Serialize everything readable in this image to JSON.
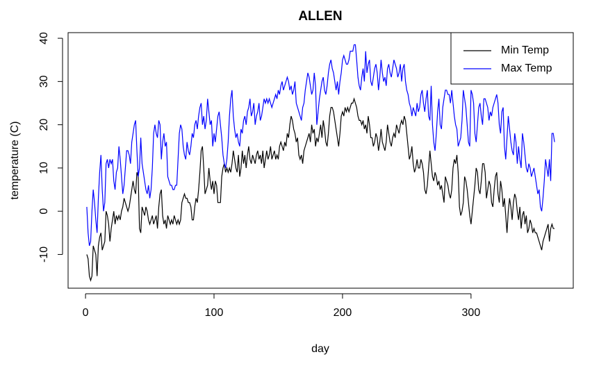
{
  "chart_data": {
    "type": "line",
    "title": "ALLEN",
    "xlabel": "day",
    "ylabel": "temperature (C)",
    "legend": "topright",
    "xlim": [
      -13.56,
      379.56
    ],
    "ylim": [
      -17.8,
      41.3
    ],
    "xticks": [
      0,
      100,
      200,
      300
    ],
    "yticks": [
      -10,
      0,
      10,
      20,
      30,
      40
    ],
    "x": [
      1,
      2,
      3,
      4,
      5,
      6,
      7,
      8,
      9,
      10,
      11,
      12,
      13,
      14,
      15,
      16,
      17,
      18,
      19,
      20,
      21,
      22,
      23,
      24,
      25,
      26,
      27,
      28,
      29,
      30,
      31,
      32,
      33,
      34,
      35,
      36,
      37,
      38,
      39,
      40,
      41,
      42,
      43,
      44,
      45,
      46,
      47,
      48,
      49,
      50,
      51,
      52,
      53,
      54,
      55,
      56,
      57,
      58,
      59,
      60,
      61,
      62,
      63,
      64,
      65,
      66,
      67,
      68,
      69,
      70,
      71,
      72,
      73,
      74,
      75,
      76,
      77,
      78,
      79,
      80,
      81,
      82,
      83,
      84,
      85,
      86,
      87,
      88,
      89,
      90,
      91,
      92,
      93,
      94,
      95,
      96,
      97,
      98,
      99,
      100,
      101,
      102,
      103,
      104,
      105,
      106,
      107,
      108,
      109,
      110,
      111,
      112,
      113,
      114,
      115,
      116,
      117,
      118,
      119,
      120,
      121,
      122,
      123,
      124,
      125,
      126,
      127,
      128,
      129,
      130,
      131,
      132,
      133,
      134,
      135,
      136,
      137,
      138,
      139,
      140,
      141,
      142,
      143,
      144,
      145,
      146,
      147,
      148,
      149,
      150,
      151,
      152,
      153,
      154,
      155,
      156,
      157,
      158,
      159,
      160,
      161,
      162,
      163,
      164,
      165,
      166,
      167,
      168,
      169,
      170,
      171,
      172,
      173,
      174,
      175,
      176,
      177,
      178,
      179,
      180,
      181,
      182,
      183,
      184,
      185,
      186,
      187,
      188,
      189,
      190,
      191,
      192,
      193,
      194,
      195,
      196,
      197,
      198,
      199,
      200,
      201,
      202,
      203,
      204,
      205,
      206,
      207,
      208,
      209,
      210,
      211,
      212,
      213,
      214,
      215,
      216,
      217,
      218,
      219,
      220,
      221,
      222,
      223,
      224,
      225,
      226,
      227,
      228,
      229,
      230,
      231,
      232,
      233,
      234,
      235,
      236,
      237,
      238,
      239,
      240,
      241,
      242,
      243,
      244,
      245,
      246,
      247,
      248,
      249,
      250,
      251,
      252,
      253,
      254,
      255,
      256,
      257,
      258,
      259,
      260,
      261,
      262,
      263,
      264,
      265,
      266,
      267,
      268,
      269,
      270,
      271,
      272,
      273,
      274,
      275,
      276,
      277,
      278,
      279,
      280,
      281,
      282,
      283,
      284,
      285,
      286,
      287,
      288,
      289,
      290,
      291,
      292,
      293,
      294,
      295,
      296,
      297,
      298,
      299,
      300,
      301,
      302,
      303,
      304,
      305,
      306,
      307,
      308,
      309,
      310,
      311,
      312,
      313,
      314,
      315,
      316,
      317,
      318,
      319,
      320,
      321,
      322,
      323,
      324,
      325,
      326,
      327,
      328,
      329,
      330,
      331,
      332,
      333,
      334,
      335,
      336,
      337,
      338,
      339,
      340,
      341,
      342,
      343,
      344,
      345,
      346,
      347,
      348,
      349,
      350,
      351,
      352,
      353,
      354,
      355,
      356,
      357,
      358,
      359,
      360,
      361,
      362,
      363,
      364,
      365
    ],
    "series": [
      {
        "name": "Min Temp",
        "color": "#000000",
        "values": [
          -10,
          -11,
          -15,
          -16,
          -15,
          -8,
          -9,
          -10,
          -15,
          -8,
          -6,
          -5,
          -9,
          -8,
          -7,
          0,
          -1,
          -3,
          -7,
          -4,
          -2,
          0,
          -3,
          -1,
          -2,
          -1,
          -2,
          0,
          1,
          3,
          2,
          1,
          0,
          1,
          3,
          5,
          7,
          5,
          4,
          9,
          8,
          -4,
          -5,
          1,
          0,
          -1,
          1,
          0,
          -2,
          -3,
          -2,
          -1,
          -3,
          -2,
          -1,
          -4,
          1,
          4,
          5,
          -1,
          -3,
          -2,
          -4,
          -1,
          -2,
          -3,
          -2,
          -3,
          -1,
          -2,
          -3,
          -2,
          -3,
          -2,
          2,
          3,
          4,
          3,
          3,
          2,
          2,
          1,
          -2,
          -2,
          1,
          3,
          2,
          5,
          9,
          14,
          15,
          10,
          4,
          5,
          6,
          10,
          7,
          5,
          7,
          4,
          7,
          6,
          2,
          2,
          2,
          8,
          10,
          11,
          9,
          10,
          9,
          10,
          9,
          11,
          14,
          12,
          10,
          9,
          13,
          8,
          10,
          14,
          11,
          13,
          10,
          13,
          15,
          12,
          11,
          13,
          12,
          11,
          13,
          14,
          12,
          13,
          11,
          14,
          10,
          12,
          14,
          12,
          13,
          15,
          12,
          13,
          14,
          12,
          13,
          12,
          15,
          16,
          15,
          14,
          16,
          15,
          18,
          17,
          20,
          22,
          21,
          19,
          18,
          16,
          17,
          13,
          12,
          13,
          11,
          14,
          15,
          16,
          17,
          18,
          16,
          20,
          18,
          19,
          15,
          17,
          16,
          18,
          20,
          17,
          21,
          19,
          16,
          15,
          18,
          22,
          24,
          24,
          23,
          21,
          19,
          17,
          15,
          18,
          22,
          23,
          22,
          24,
          23,
          24,
          23,
          24,
          25,
          25,
          26,
          25,
          24,
          22,
          21,
          21,
          20,
          21,
          19,
          20,
          18,
          22,
          20,
          17,
          17,
          15,
          16,
          18,
          17,
          14,
          16,
          19,
          16,
          15,
          14,
          16,
          20,
          18,
          16,
          15,
          17,
          18,
          17,
          20,
          19,
          18,
          20,
          21,
          20,
          22,
          21,
          18,
          15,
          12,
          13,
          15,
          11,
          9,
          10,
          12,
          10,
          10,
          12,
          11,
          9,
          5,
          4,
          6,
          10,
          14,
          11,
          8,
          7,
          9,
          8,
          6,
          7,
          5,
          6,
          4,
          2,
          8,
          7,
          6,
          4,
          3,
          5,
          10,
          12,
          11,
          13,
          9,
          1,
          -1,
          0,
          2,
          8,
          7,
          5,
          2,
          -1,
          -3,
          0,
          3,
          6,
          10,
          9,
          5,
          4,
          7,
          11,
          11,
          9,
          3,
          5,
          7,
          6,
          2,
          1,
          5,
          8,
          9,
          4,
          2,
          7,
          5,
          1,
          3,
          -1,
          -5,
          0,
          3,
          1,
          -2,
          2,
          4,
          3,
          0,
          -2,
          1,
          -4,
          -1,
          0,
          -3,
          -1,
          -5,
          -4,
          -2,
          -3,
          -5,
          -4,
          -5,
          -5,
          -6,
          -7,
          -8,
          -9,
          -7,
          -6,
          -5,
          -4,
          -3,
          -7,
          -4,
          -3,
          -4,
          -4
        ]
      },
      {
        "name": "Max Temp",
        "color": "#0000ff",
        "values": [
          1,
          -5,
          -8,
          -7,
          0,
          5,
          2,
          -2,
          -5,
          3,
          9,
          13,
          5,
          0,
          2,
          11,
          12,
          10,
          12,
          11,
          12,
          7,
          5,
          9,
          10,
          15,
          12,
          8,
          4,
          6,
          10,
          14,
          14,
          13,
          11,
          16,
          18,
          20,
          21,
          14,
          8,
          10,
          17,
          11,
          9,
          7,
          5,
          4,
          6,
          3,
          5,
          10,
          18,
          20,
          18,
          17,
          21,
          20,
          12,
          16,
          18,
          15,
          16,
          8,
          7,
          6,
          6,
          5,
          5,
          6,
          6,
          12,
          18,
          20,
          19,
          15,
          13,
          12,
          16,
          14,
          13,
          15,
          18,
          17,
          20,
          21,
          19,
          22,
          24,
          25,
          20,
          22,
          19,
          21,
          26,
          23,
          20,
          21,
          15,
          18,
          16,
          19,
          22,
          23,
          20,
          17,
          13,
          11,
          10,
          12,
          16,
          22,
          26,
          28,
          22,
          19,
          17,
          18,
          16,
          15,
          19,
          18,
          21,
          22,
          20,
          23,
          24,
          26,
          22,
          23,
          25,
          20,
          22,
          23,
          25,
          21,
          22,
          24,
          26,
          25,
          26,
          25,
          26,
          25,
          24,
          25,
          26,
          27,
          26,
          28,
          27,
          29,
          30,
          28,
          29,
          30,
          31,
          30,
          28,
          29,
          27,
          28,
          30,
          25,
          24,
          23,
          22,
          21,
          24,
          25,
          28,
          30,
          32,
          31,
          29,
          27,
          28,
          32,
          29,
          20,
          23,
          26,
          28,
          30,
          31,
          28,
          27,
          29,
          32,
          34,
          35,
          33,
          32,
          30,
          28,
          30,
          27,
          30,
          32,
          35,
          36,
          35,
          34,
          34,
          35,
          37,
          37,
          37,
          38.5,
          38.5,
          35,
          31,
          29,
          28,
          31,
          33,
          30,
          37,
          32,
          34,
          35,
          30,
          29,
          31,
          33,
          34,
          32,
          28,
          31,
          35,
          32,
          30,
          31,
          29,
          33,
          34,
          32,
          31,
          33,
          35,
          34,
          33,
          31,
          32,
          34,
          30,
          33,
          34,
          30,
          28,
          27,
          25,
          24,
          22,
          24,
          23,
          22,
          25,
          23,
          24,
          27,
          28,
          25,
          23,
          26,
          28,
          22,
          21,
          29,
          20,
          16,
          14,
          18,
          23,
          26,
          20,
          19,
          24,
          26,
          28,
          28,
          27,
          27,
          25,
          28,
          25,
          22,
          20,
          19,
          15,
          16,
          17,
          21,
          28,
          26,
          24,
          20,
          16,
          15,
          28,
          27,
          25,
          18,
          16,
          20,
          24,
          25,
          22,
          20,
          26,
          26,
          25,
          24,
          21,
          23,
          22,
          24,
          25,
          26,
          27,
          25,
          20,
          18,
          23,
          24,
          15,
          12,
          17,
          22,
          19,
          16,
          14,
          13,
          18,
          16,
          11,
          15,
          12,
          10,
          18,
          16,
          13,
          10,
          9,
          11,
          10,
          8,
          9,
          10,
          8,
          6,
          4,
          5,
          1,
          0,
          3,
          7,
          12,
          10,
          8,
          12,
          7,
          18,
          18,
          16
        ]
      }
    ]
  }
}
